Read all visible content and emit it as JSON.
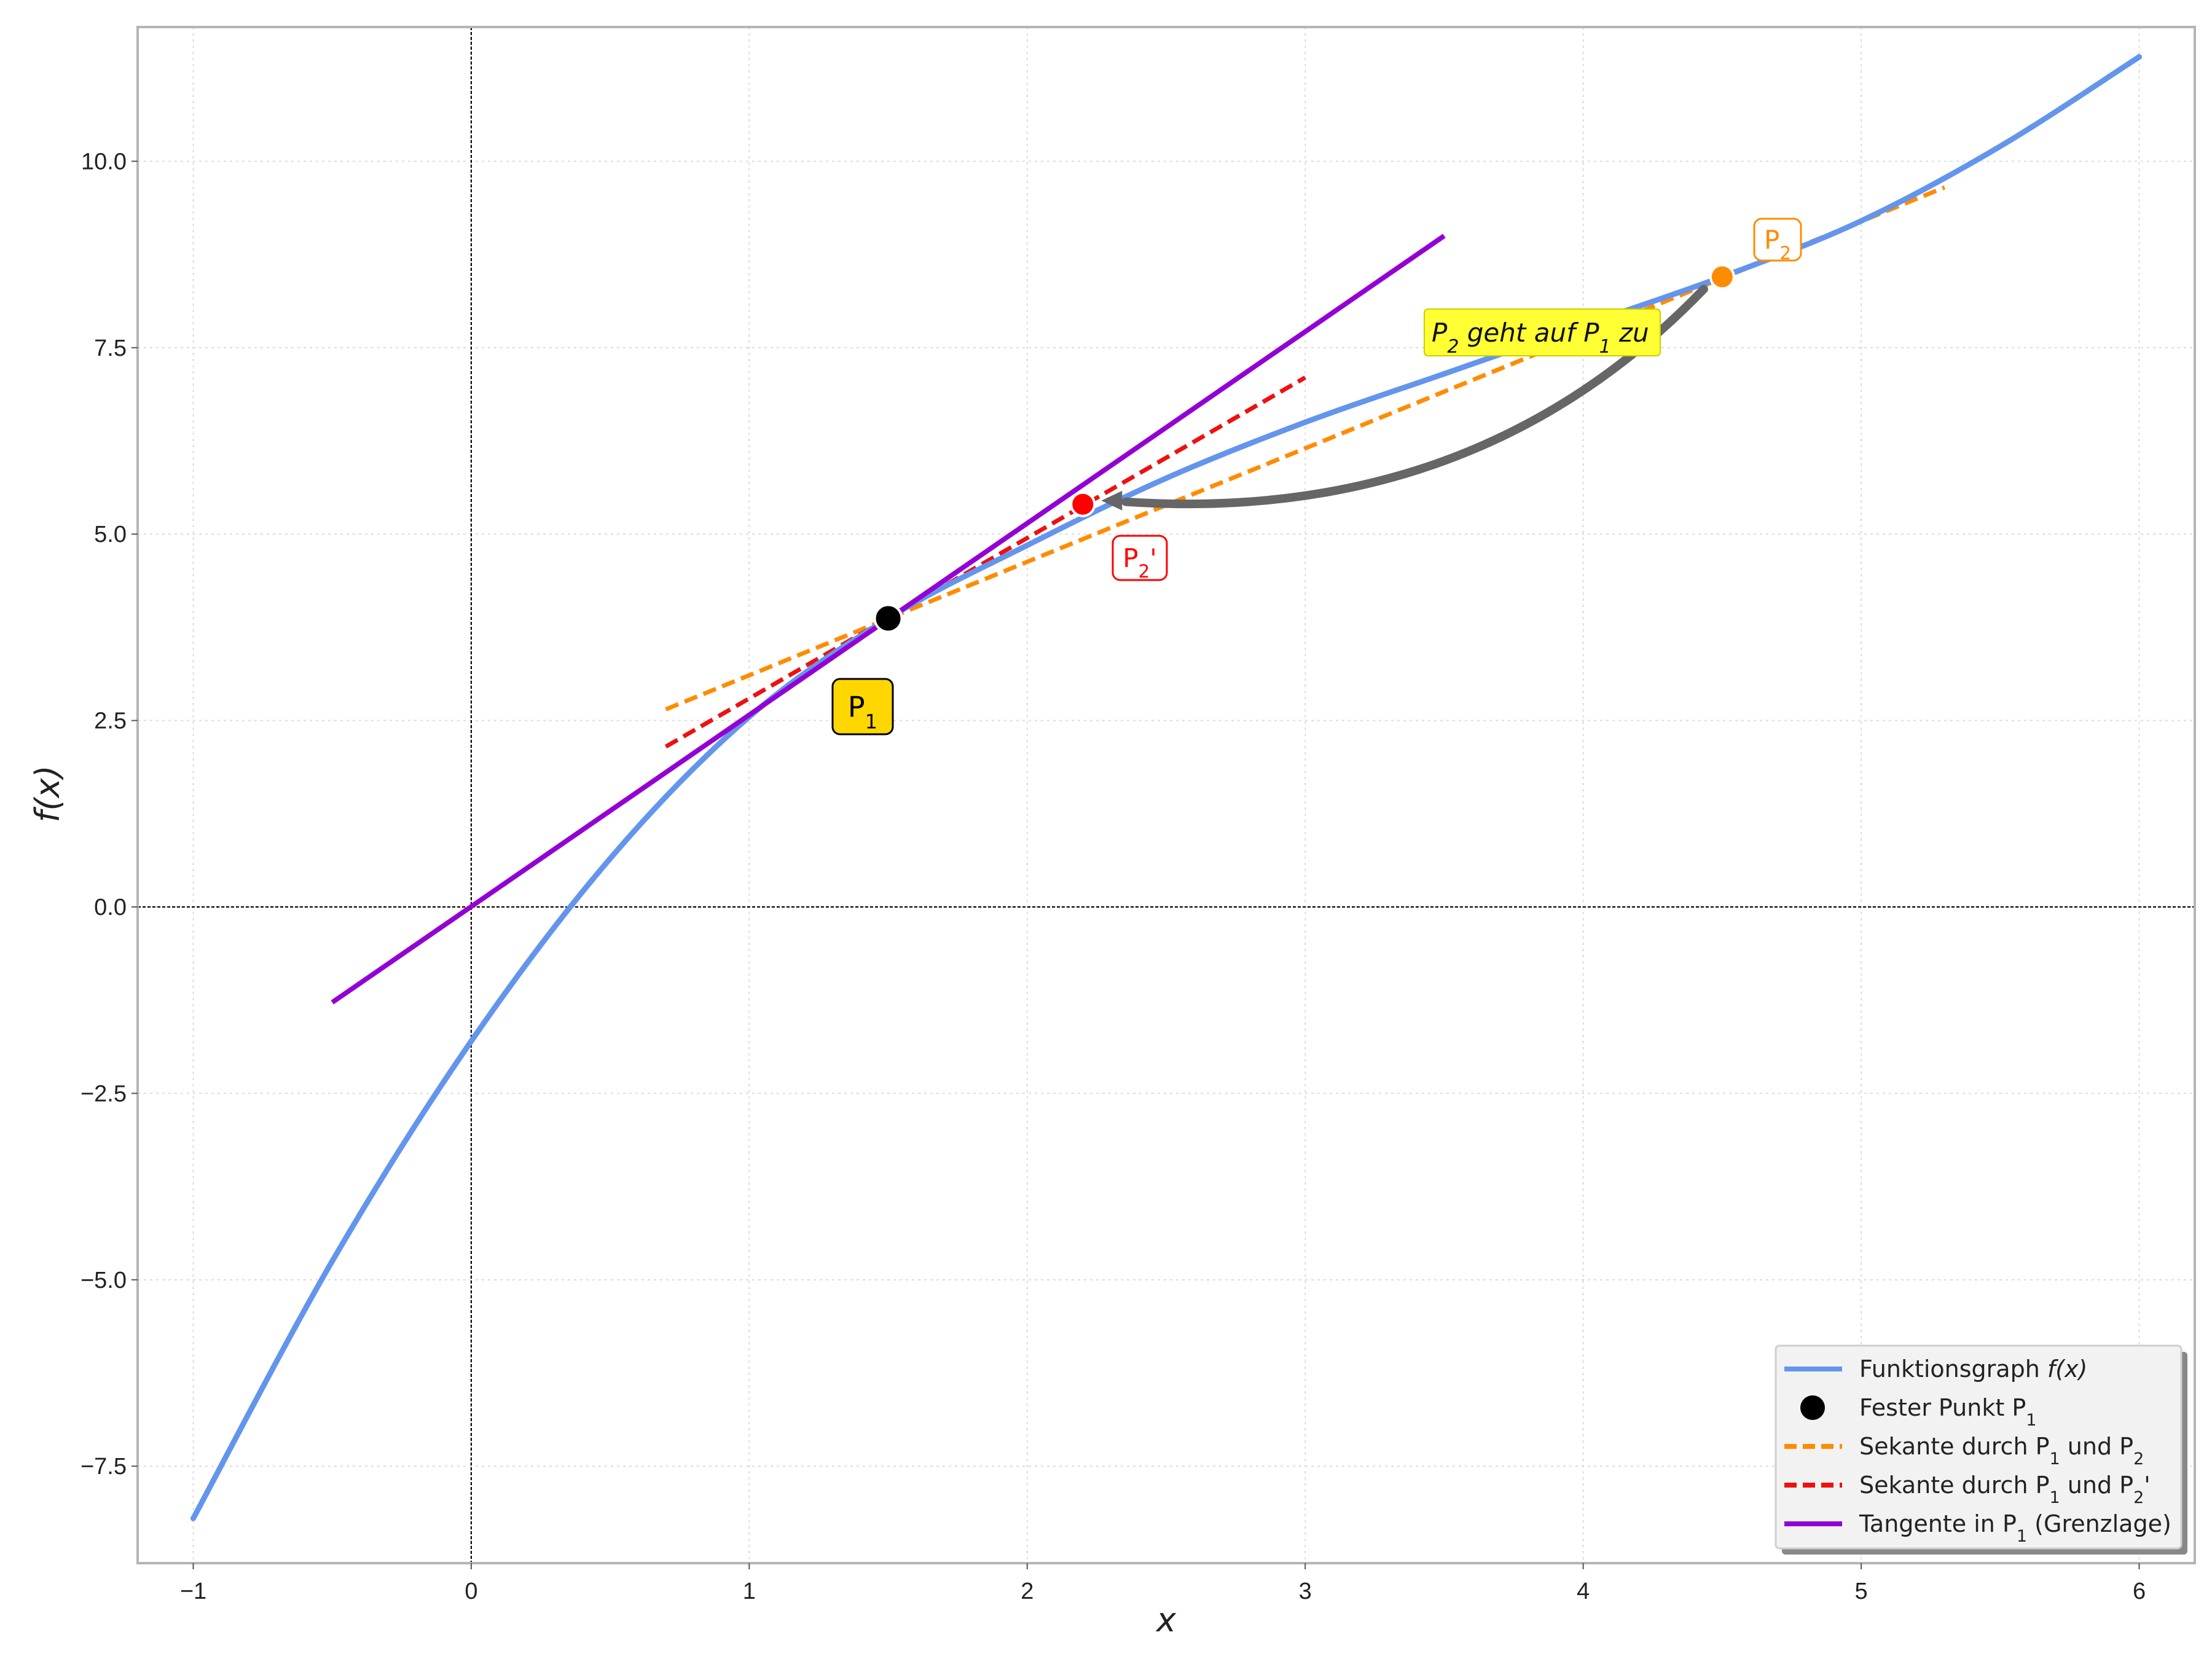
{
  "chart_data": {
    "type": "line",
    "title": "",
    "xlabel": "x",
    "ylabel": "f(x)",
    "xlim": [
      -1.2,
      6.2
    ],
    "ylim": [
      -8.8,
      11.8
    ],
    "grid": true,
    "xticks": [
      -1,
      0,
      1,
      2,
      3,
      4,
      5,
      6
    ],
    "yticks": [
      -7.5,
      -5.0,
      -2.5,
      0.0,
      2.5,
      5.0,
      7.5,
      10.0
    ],
    "xtick_labels": [
      "−1",
      "0",
      "1",
      "2",
      "3",
      "4",
      "5",
      "6"
    ],
    "ytick_labels": [
      "−7.5",
      "−5.0",
      "−2.5",
      "0.0",
      "2.5",
      "5.0",
      "7.5",
      "10.0"
    ],
    "series": [
      {
        "name": "Funktionsgraph f(x)",
        "color": "#6495ED",
        "style": "solid",
        "x": [
          -1.0,
          -0.5,
          0.0,
          0.5,
          1.0,
          1.5,
          2.0,
          2.5,
          3.0,
          3.5,
          4.0,
          4.5,
          5.0,
          5.5,
          6.0
        ],
        "y": [
          -8.2,
          -4.75,
          -1.8,
          0.65,
          2.55,
          3.87,
          4.85,
          5.75,
          6.5,
          7.15,
          7.8,
          8.45,
          9.2,
          10.2,
          11.4
        ]
      },
      {
        "name": "Sekante durch P1 und P2",
        "color": "#FF8C00",
        "style": "dashed",
        "x": [
          0.7,
          5.3
        ],
        "y": [
          2.65,
          9.65
        ]
      },
      {
        "name": "Sekante durch P1 und P2'",
        "color": "#EE1111",
        "style": "dashed",
        "x": [
          0.7,
          3.0
        ],
        "y": [
          2.15,
          7.1
        ]
      },
      {
        "name": "Tangente in P1 (Grenzlage)",
        "color": "#9400D3",
        "style": "solid",
        "x": [
          -0.5,
          3.5
        ],
        "y": [
          -1.28,
          9.0
        ]
      }
    ],
    "points": [
      {
        "name": "Fester Punkt P1",
        "label": "P1",
        "x": 1.5,
        "y": 3.87,
        "color": "#000000"
      },
      {
        "label": "P2'",
        "x": 2.2,
        "y": 5.4,
        "color": "#FF0000"
      },
      {
        "label": "P2",
        "x": 4.5,
        "y": 8.45,
        "color": "#FF8C00"
      }
    ],
    "annotations": [
      {
        "text_main": "P",
        "text_sub": "2",
        "text_rest": " geht auf P",
        "text_sub2": "1",
        "text_end": " zu"
      }
    ],
    "legend": {
      "position": "bottom-right",
      "entries": [
        {
          "text": "Funktionsgraph ",
          "math": "f(x)",
          "color": "#6495ED",
          "marker": "line"
        },
        {
          "text": "Fester Punkt P",
          "sub": "1",
          "rest": "",
          "color": "#000000",
          "marker": "dot"
        },
        {
          "text": "Sekante durch P",
          "sub": "1",
          "rest": " und P",
          "sub2": "2",
          "rest2": "",
          "color": "#FF8C00",
          "marker": "dash"
        },
        {
          "text": "Sekante durch P",
          "sub": "1",
          "rest": " und P",
          "sub2": "2",
          "rest2": "'",
          "color": "#EE1111",
          "marker": "dash"
        },
        {
          "text": "Tangente in P",
          "sub": "1",
          "rest": " (Grenzlage)",
          "color": "#9400D3",
          "marker": "line"
        }
      ]
    }
  }
}
